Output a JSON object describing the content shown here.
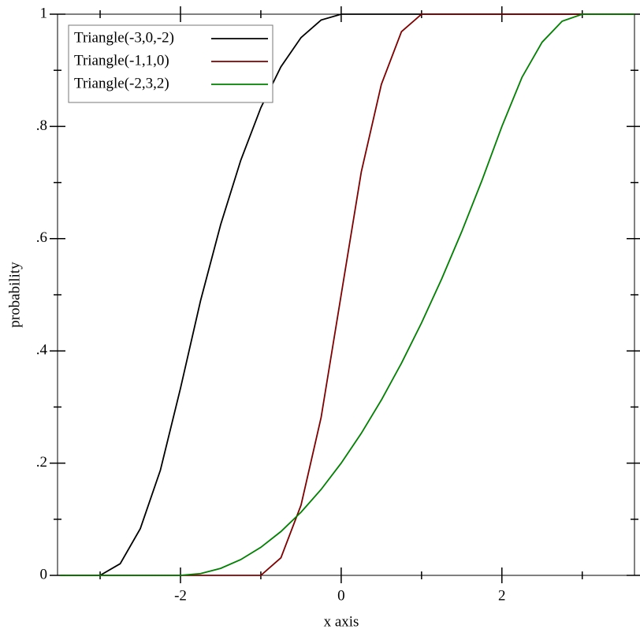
{
  "chart_data": {
    "type": "line",
    "xlabel": "x axis",
    "ylabel": "probability",
    "x": [
      -3.5,
      -3.25,
      -3,
      -2.75,
      -2.5,
      -2.25,
      -2,
      -1.75,
      -1.5,
      -1.25,
      -1,
      -0.75,
      -0.5,
      -0.25,
      0,
      0.25,
      0.5,
      0.75,
      1,
      1.25,
      1.5,
      1.75,
      2,
      2.25,
      2.5,
      2.75,
      3,
      3.25,
      3.5,
      3.65
    ],
    "series": [
      {
        "name": "Triangle(-3,0,-2)",
        "color": "#000000",
        "values": [
          0,
          0,
          0,
          0.0208,
          0.0833,
          0.1875,
          0.3333,
          0.4896,
          0.625,
          0.7396,
          0.8333,
          0.9063,
          0.9583,
          0.9896,
          1,
          1,
          1,
          1,
          1,
          1,
          1,
          1,
          1,
          1,
          1,
          1,
          1,
          1,
          1,
          1
        ]
      },
      {
        "name": "Triangle(-1,1,0)",
        "color": "#800000",
        "values": [
          0,
          0,
          0,
          0,
          0,
          0,
          0,
          0,
          0,
          0,
          0,
          0.0313,
          0.125,
          0.2813,
          0.5,
          0.7188,
          0.875,
          0.9688,
          1,
          1,
          1,
          1,
          1,
          1,
          1,
          1,
          1,
          1,
          1,
          1
        ]
      },
      {
        "name": "Triangle(-2,3,2)",
        "color": "#008000",
        "values": [
          0,
          0,
          0,
          0,
          0,
          0,
          0,
          0.0031,
          0.0125,
          0.0281,
          0.05,
          0.0781,
          0.1125,
          0.1531,
          0.2,
          0.2531,
          0.3125,
          0.3781,
          0.45,
          0.5281,
          0.6125,
          0.7031,
          0.8,
          0.8875,
          0.95,
          0.9875,
          1,
          1,
          1,
          1
        ]
      }
    ],
    "xlim": [
      -3.53,
      3.65
    ],
    "ylim": [
      0,
      1
    ],
    "xticks": [
      -2,
      0,
      2
    ],
    "xminorticks": [
      -3,
      -1,
      1,
      3
    ],
    "yticks": [
      0,
      {
        "value": 0.2,
        "label": ".2"
      },
      {
        "value": 0.4,
        "label": ".4"
      },
      {
        "value": 0.6,
        "label": ".6"
      },
      {
        "value": 0.8,
        "label": ".8"
      },
      1
    ],
    "yminorticks": [
      0.1,
      0.3,
      0.5,
      0.7,
      0.9
    ],
    "legend": "upper left"
  }
}
